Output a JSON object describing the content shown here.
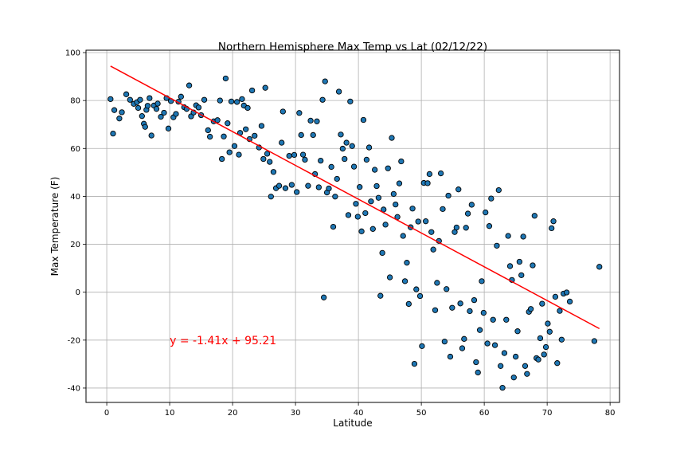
{
  "chart_data": {
    "type": "scatter",
    "title": "Northern Hemisphere Max Temp vs Lat (02/12/22)",
    "xlabel": "Latitude",
    "ylabel": "Max Temperature (F)",
    "xlim": [
      -3.3,
      81.5
    ],
    "ylim": [
      -46,
      101
    ],
    "xticks": [
      0,
      10,
      20,
      30,
      40,
      50,
      60,
      70,
      80
    ],
    "yticks": [
      -40,
      -20,
      0,
      20,
      40,
      60,
      80,
      100
    ],
    "grid": true,
    "marker_color": "#1f77b4",
    "marker_edge": "#000000",
    "regression": {
      "slope": -1.41,
      "intercept": 95.21,
      "x_range": [
        0.6,
        78.3
      ],
      "color": "#ff0000",
      "equation": "y = -1.41x + 95.21",
      "label_at": [
        10,
        -20
      ]
    },
    "points": [
      [
        0.6,
        80.6
      ],
      [
        1.0,
        66.2
      ],
      [
        1.2,
        76.0
      ],
      [
        2.0,
        72.5
      ],
      [
        2.4,
        75.1
      ],
      [
        3.1,
        82.6
      ],
      [
        3.7,
        80.3
      ],
      [
        4.3,
        78.6
      ],
      [
        4.8,
        79.3
      ],
      [
        5.0,
        76.9
      ],
      [
        5.3,
        80.3
      ],
      [
        5.6,
        73.5
      ],
      [
        5.9,
        70.3
      ],
      [
        6.1,
        69.0
      ],
      [
        6.3,
        76.1
      ],
      [
        6.5,
        77.8
      ],
      [
        6.8,
        81.0
      ],
      [
        7.1,
        65.4
      ],
      [
        7.5,
        77.9
      ],
      [
        7.9,
        76.5
      ],
      [
        8.1,
        78.7
      ],
      [
        8.6,
        73.2
      ],
      [
        9.1,
        74.9
      ],
      [
        9.5,
        81.0
      ],
      [
        9.8,
        68.3
      ],
      [
        10.2,
        79.8
      ],
      [
        10.6,
        73.0
      ],
      [
        11.0,
        74.4
      ],
      [
        11.4,
        79.5
      ],
      [
        11.8,
        81.6
      ],
      [
        12.3,
        77.2
      ],
      [
        12.7,
        76.5
      ],
      [
        13.1,
        86.3
      ],
      [
        13.4,
        73.4
      ],
      [
        13.8,
        75.0
      ],
      [
        14.2,
        78.0
      ],
      [
        14.6,
        77.1
      ],
      [
        15.0,
        73.9
      ],
      [
        15.5,
        80.3
      ],
      [
        16.1,
        67.6
      ],
      [
        16.4,
        64.9
      ],
      [
        17.0,
        71.3
      ],
      [
        17.6,
        71.8
      ],
      [
        18.0,
        80.0
      ],
      [
        18.3,
        55.6
      ],
      [
        18.6,
        65.0
      ],
      [
        18.9,
        89.2
      ],
      [
        19.2,
        70.5
      ],
      [
        19.5,
        58.4
      ],
      [
        19.8,
        79.6
      ],
      [
        20.3,
        61.0
      ],
      [
        20.7,
        79.4
      ],
      [
        21.0,
        57.4
      ],
      [
        21.2,
        66.5
      ],
      [
        21.5,
        80.6
      ],
      [
        21.8,
        77.9
      ],
      [
        22.1,
        68.0
      ],
      [
        22.4,
        76.9
      ],
      [
        22.7,
        63.9
      ],
      [
        23.1,
        84.2
      ],
      [
        23.5,
        65.3
      ],
      [
        24.2,
        60.4
      ],
      [
        24.6,
        69.4
      ],
      [
        24.9,
        55.6
      ],
      [
        25.2,
        85.3
      ],
      [
        25.5,
        57.8
      ],
      [
        25.9,
        54.4
      ],
      [
        26.1,
        39.9
      ],
      [
        26.5,
        50.2
      ],
      [
        26.9,
        43.4
      ],
      [
        27.4,
        44.4
      ],
      [
        27.8,
        62.4
      ],
      [
        28.0,
        75.4
      ],
      [
        28.4,
        43.4
      ],
      [
        29.0,
        56.9
      ],
      [
        29.4,
        44.8
      ],
      [
        29.8,
        57.3
      ],
      [
        30.2,
        41.8
      ],
      [
        30.6,
        74.8
      ],
      [
        30.9,
        65.6
      ],
      [
        31.2,
        57.4
      ],
      [
        31.5,
        55.3
      ],
      [
        32.0,
        44.4
      ],
      [
        32.4,
        71.6
      ],
      [
        32.8,
        65.6
      ],
      [
        33.1,
        49.3
      ],
      [
        33.4,
        71.3
      ],
      [
        33.7,
        43.8
      ],
      [
        34.0,
        54.9
      ],
      [
        34.3,
        80.3
      ],
      [
        34.5,
        -2.2
      ],
      [
        34.7,
        88.0
      ],
      [
        35.0,
        41.6
      ],
      [
        35.3,
        43.3
      ],
      [
        35.7,
        52.3
      ],
      [
        36.0,
        27.3
      ],
      [
        36.3,
        39.9
      ],
      [
        36.6,
        47.3
      ],
      [
        36.9,
        83.7
      ],
      [
        37.2,
        65.8
      ],
      [
        37.5,
        59.9
      ],
      [
        37.8,
        55.6
      ],
      [
        38.1,
        62.4
      ],
      [
        38.4,
        32.2
      ],
      [
        38.7,
        79.6
      ],
      [
        39.0,
        61.0
      ],
      [
        39.3,
        52.4
      ],
      [
        39.6,
        36.9
      ],
      [
        39.9,
        31.5
      ],
      [
        40.2,
        43.9
      ],
      [
        40.5,
        25.4
      ],
      [
        40.8,
        71.9
      ],
      [
        41.1,
        33.0
      ],
      [
        41.3,
        55.3
      ],
      [
        41.7,
        60.4
      ],
      [
        42.0,
        37.9
      ],
      [
        42.3,
        26.4
      ],
      [
        42.6,
        51.1
      ],
      [
        42.9,
        44.3
      ],
      [
        43.2,
        39.4
      ],
      [
        43.5,
        -1.5
      ],
      [
        43.8,
        16.4
      ],
      [
        44.0,
        34.5
      ],
      [
        44.3,
        28.2
      ],
      [
        44.7,
        51.7
      ],
      [
        45.0,
        6.2
      ],
      [
        45.3,
        64.4
      ],
      [
        45.6,
        41.0
      ],
      [
        45.9,
        36.6
      ],
      [
        46.2,
        31.4
      ],
      [
        46.5,
        45.4
      ],
      [
        46.8,
        54.6
      ],
      [
        47.1,
        23.5
      ],
      [
        47.4,
        4.6
      ],
      [
        47.7,
        12.3
      ],
      [
        48.0,
        -4.9
      ],
      [
        48.3,
        27.1
      ],
      [
        48.6,
        34.9
      ],
      [
        48.9,
        -29.9
      ],
      [
        49.2,
        1.2
      ],
      [
        49.5,
        29.5
      ],
      [
        49.8,
        -1.6
      ],
      [
        50.1,
        -22.5
      ],
      [
        50.4,
        45.6
      ],
      [
        50.7,
        29.6
      ],
      [
        51.0,
        45.5
      ],
      [
        51.3,
        49.3
      ],
      [
        51.6,
        25.1
      ],
      [
        51.9,
        17.8
      ],
      [
        52.2,
        -7.5
      ],
      [
        52.5,
        3.9
      ],
      [
        52.8,
        21.4
      ],
      [
        53.1,
        49.6
      ],
      [
        53.4,
        34.7
      ],
      [
        53.7,
        -20.6
      ],
      [
        54.0,
        1.3
      ],
      [
        54.3,
        40.3
      ],
      [
        54.6,
        -26.9
      ],
      [
        54.9,
        -6.5
      ],
      [
        55.3,
        25.1
      ],
      [
        55.6,
        27.0
      ],
      [
        55.9,
        42.9
      ],
      [
        56.2,
        -4.7
      ],
      [
        56.5,
        -23.4
      ],
      [
        56.8,
        -19.5
      ],
      [
        57.1,
        26.9
      ],
      [
        57.4,
        32.8
      ],
      [
        57.7,
        -7.9
      ],
      [
        58.0,
        36.5
      ],
      [
        58.4,
        -3.3
      ],
      [
        58.7,
        -29.2
      ],
      [
        59.0,
        -33.5
      ],
      [
        59.3,
        -15.8
      ],
      [
        59.6,
        4.6
      ],
      [
        59.9,
        -8.6
      ],
      [
        60.2,
        33.3
      ],
      [
        60.5,
        -21.4
      ],
      [
        60.8,
        27.6
      ],
      [
        61.1,
        39.1
      ],
      [
        61.4,
        -11.5
      ],
      [
        61.7,
        -22.1
      ],
      [
        62.0,
        19.4
      ],
      [
        62.3,
        42.6
      ],
      [
        62.6,
        -30.8
      ],
      [
        62.9,
        -39.9
      ],
      [
        63.2,
        -25.4
      ],
      [
        63.5,
        -11.5
      ],
      [
        63.8,
        23.5
      ],
      [
        64.1,
        10.9
      ],
      [
        64.4,
        5.1
      ],
      [
        64.7,
        -35.6
      ],
      [
        65.0,
        -26.9
      ],
      [
        65.3,
        -16.3
      ],
      [
        65.6,
        12.7
      ],
      [
        65.9,
        7.1
      ],
      [
        66.2,
        23.2
      ],
      [
        66.5,
        -30.8
      ],
      [
        66.8,
        -34.1
      ],
      [
        67.1,
        -8.2
      ],
      [
        67.4,
        -7.0
      ],
      [
        67.7,
        11.2
      ],
      [
        68.0,
        31.9
      ],
      [
        68.3,
        -27.5
      ],
      [
        68.6,
        -28.1
      ],
      [
        68.9,
        -19.2
      ],
      [
        69.2,
        -4.8
      ],
      [
        69.5,
        -26.0
      ],
      [
        69.8,
        -22.9
      ],
      [
        70.1,
        -13.1
      ],
      [
        70.4,
        -16.5
      ],
      [
        70.7,
        26.7
      ],
      [
        71.0,
        29.6
      ],
      [
        71.3,
        -1.9
      ],
      [
        71.6,
        -29.6
      ],
      [
        72.0,
        -7.8
      ],
      [
        72.3,
        -19.8
      ],
      [
        72.6,
        -0.6
      ],
      [
        73.1,
        -0.1
      ],
      [
        73.6,
        -3.9
      ],
      [
        77.5,
        -20.4
      ],
      [
        78.3,
        10.6
      ]
    ]
  }
}
